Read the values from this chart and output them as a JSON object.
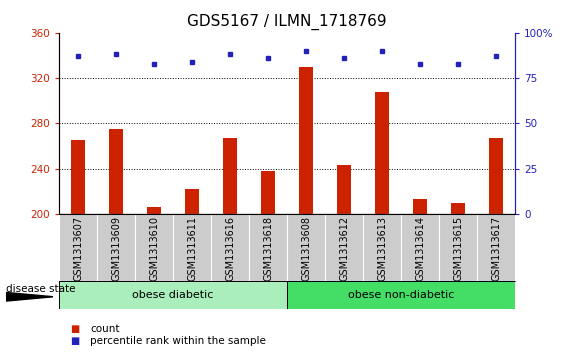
{
  "title": "GDS5167 / ILMN_1718769",
  "samples": [
    "GSM1313607",
    "GSM1313609",
    "GSM1313610",
    "GSM1313611",
    "GSM1313616",
    "GSM1313618",
    "GSM1313608",
    "GSM1313612",
    "GSM1313613",
    "GSM1313614",
    "GSM1313615",
    "GSM1313617"
  ],
  "counts": [
    265,
    275,
    206,
    222,
    267,
    238,
    330,
    243,
    308,
    213,
    210,
    267
  ],
  "percentile_ranks": [
    87,
    88,
    83,
    84,
    88,
    86,
    90,
    86,
    90,
    83,
    83,
    87
  ],
  "count_base": 200,
  "ylim_left": [
    200,
    360
  ],
  "ylim_right": [
    0,
    100
  ],
  "yticks_left": [
    200,
    240,
    280,
    320,
    360
  ],
  "yticks_right": [
    0,
    25,
    50,
    75,
    100
  ],
  "group1_label": "obese diabetic",
  "group2_label": "obese non-diabetic",
  "group1_count": 6,
  "group2_count": 6,
  "group1_color": "#AAEEBB",
  "group2_color": "#44DD66",
  "bar_color": "#CC2200",
  "dot_color": "#2222BB",
  "disease_state_label": "disease state",
  "legend_count_label": "count",
  "legend_percentile_label": "percentile rank within the sample",
  "bg_color": "#CCCCCC",
  "plot_bg": "#FFFFFF",
  "title_fontsize": 11,
  "tick_label_fontsize": 7,
  "bar_width": 0.35
}
